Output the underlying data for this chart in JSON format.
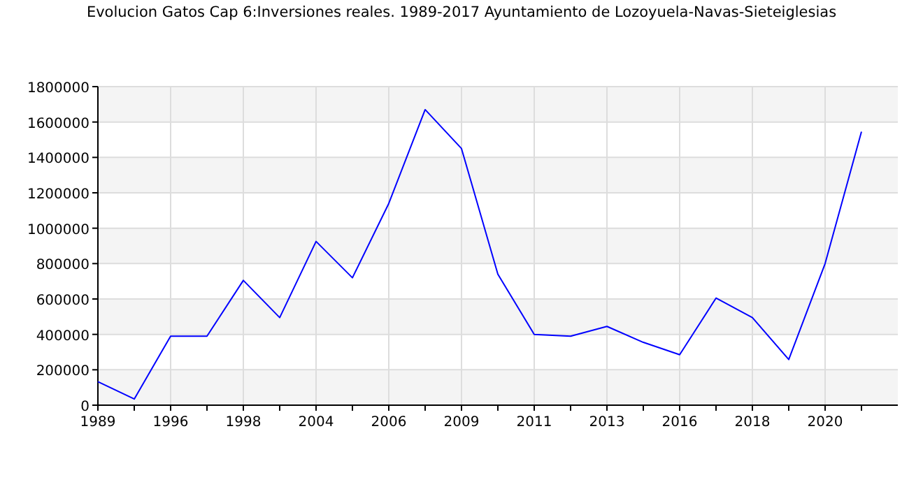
{
  "chart_data": {
    "type": "line",
    "title": "Evolucion Gatos Cap 6:Inversiones reales. 1989-2017 Ayuntamiento de Lozoyuela-Navas-Sieteiglesias",
    "categories": [
      "1989",
      null,
      "1996",
      null,
      "1998",
      null,
      "2004",
      null,
      "2006",
      null,
      "2009",
      null,
      "2011",
      null,
      "2013",
      null,
      "2016",
      null,
      "2018",
      null,
      "2020",
      null
    ],
    "series": [
      {
        "color": "#0000ff",
        "values": [
          133000,
          35000,
          390000,
          390000,
          705000,
          495000,
          925000,
          720000,
          1140000,
          1670000,
          1450000,
          740000,
          400000,
          390000,
          445000,
          355000,
          285000,
          605000,
          495000,
          258000,
          800000,
          1545000
        ]
      }
    ],
    "ylim": [
      0,
      1800000
    ],
    "yticks": [
      0,
      200000,
      400000,
      600000,
      800000,
      1000000,
      1200000,
      1400000,
      1600000,
      1800000
    ],
    "grid": true,
    "marker": "none"
  }
}
